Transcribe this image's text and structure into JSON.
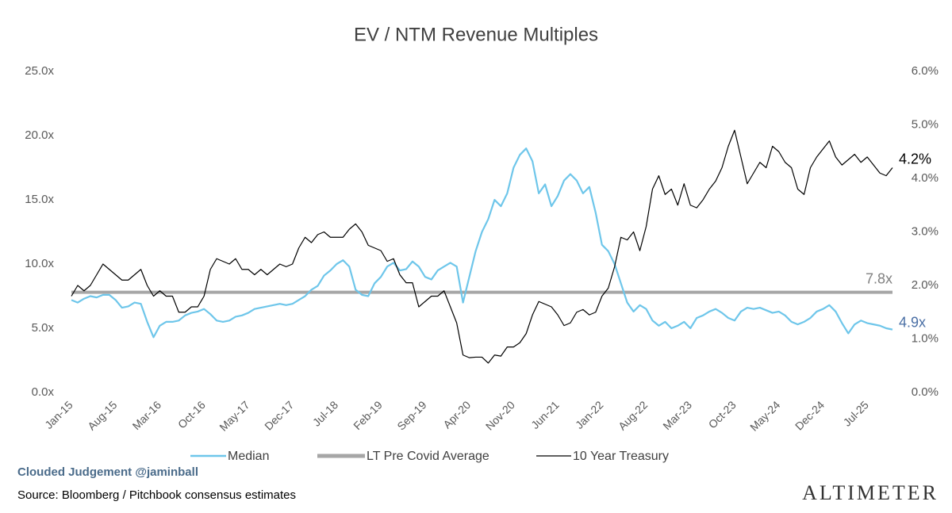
{
  "chart_data": {
    "type": "line",
    "title": "EV / NTM Revenue Multiples",
    "categories": [
      "Jan-15",
      null,
      null,
      null,
      null,
      null,
      null,
      "Aug-15",
      null,
      null,
      null,
      null,
      null,
      null,
      "Mar-16",
      null,
      null,
      null,
      null,
      null,
      null,
      "Oct-16",
      null,
      null,
      null,
      null,
      null,
      null,
      "May-17",
      null,
      null,
      null,
      null,
      null,
      null,
      "Dec-17",
      null,
      null,
      null,
      null,
      null,
      null,
      "Jul-18",
      null,
      null,
      null,
      null,
      null,
      null,
      "Feb-19",
      null,
      null,
      null,
      null,
      null,
      null,
      "Sep-19",
      null,
      null,
      null,
      null,
      null,
      null,
      "Apr-20",
      null,
      null,
      null,
      null,
      null,
      null,
      "Nov-20",
      null,
      null,
      null,
      null,
      null,
      null,
      "Jun-21",
      null,
      null,
      null,
      null,
      null,
      null,
      "Jan-22",
      null,
      null,
      null,
      null,
      null,
      null,
      "Aug-22",
      null,
      null,
      null,
      null,
      null,
      null,
      "Mar-23",
      null,
      null,
      null,
      null,
      null,
      null,
      "Oct-23",
      null,
      null,
      null,
      null,
      null,
      null,
      "May-24",
      null,
      null,
      null,
      null,
      null,
      null,
      "Dec-24",
      null,
      null,
      null,
      null,
      null,
      null,
      "Jul-25",
      null,
      null,
      null,
      null
    ],
    "series": [
      {
        "name": "Median",
        "color": "#6ec6ea",
        "end_label": "4.9x",
        "values": [
          7.2,
          7.0,
          7.3,
          7.5,
          7.4,
          7.6,
          7.6,
          7.2,
          6.6,
          6.7,
          7.0,
          6.9,
          5.5,
          4.3,
          5.2,
          5.5,
          5.5,
          5.6,
          6.0,
          6.2,
          6.3,
          6.5,
          6.1,
          5.6,
          5.5,
          5.6,
          5.9,
          6.0,
          6.2,
          6.5,
          6.6,
          6.7,
          6.8,
          6.9,
          6.8,
          6.9,
          7.2,
          7.5,
          8.0,
          8.3,
          9.1,
          9.5,
          10.0,
          10.3,
          9.8,
          8.0,
          7.6,
          7.5,
          8.5,
          9.0,
          9.8,
          10.1,
          9.5,
          9.6,
          10.2,
          9.8,
          9.0,
          8.8,
          9.5,
          9.8,
          10.1,
          9.8,
          7.0,
          9.0,
          11.0,
          12.5,
          13.5,
          15.0,
          14.5,
          15.5,
          17.5,
          18.5,
          19.0,
          18.0,
          15.5,
          16.2,
          14.5,
          15.3,
          16.5,
          17.0,
          16.5,
          15.5,
          16.0,
          14.0,
          11.5,
          11.0,
          10.0,
          8.5,
          7.0,
          6.3,
          6.8,
          6.5,
          5.6,
          5.2,
          5.5,
          5.0,
          5.2,
          5.5,
          5.0,
          5.8,
          6.0,
          6.3,
          6.5,
          6.2,
          5.8,
          5.6,
          6.3,
          6.6,
          6.5,
          6.6,
          6.4,
          6.2,
          6.3,
          6.0,
          5.5,
          5.3,
          5.5,
          5.8,
          6.3,
          6.5,
          6.8,
          6.3,
          5.4,
          4.6,
          5.3,
          5.6,
          5.4,
          5.3,
          5.2,
          5.0,
          4.9
        ]
      },
      {
        "name": "10 Year Treasury",
        "color": "#000000",
        "axis": "y2",
        "end_label": "4.2%",
        "values": [
          1.8,
          2.0,
          1.9,
          2.0,
          2.2,
          2.4,
          2.3,
          2.2,
          2.1,
          2.1,
          2.2,
          2.3,
          2.0,
          1.8,
          1.9,
          1.8,
          1.8,
          1.5,
          1.5,
          1.6,
          1.6,
          1.8,
          2.3,
          2.5,
          2.45,
          2.4,
          2.5,
          2.3,
          2.3,
          2.2,
          2.3,
          2.2,
          2.3,
          2.4,
          2.35,
          2.4,
          2.7,
          2.9,
          2.8,
          2.95,
          3.0,
          2.9,
          2.9,
          2.9,
          3.05,
          3.15,
          3.0,
          2.75,
          2.7,
          2.65,
          2.45,
          2.5,
          2.2,
          2.05,
          2.05,
          1.6,
          1.7,
          1.8,
          1.8,
          1.9,
          1.6,
          1.3,
          0.7,
          0.65,
          0.66,
          0.66,
          0.55,
          0.7,
          0.68,
          0.85,
          0.85,
          0.93,
          1.1,
          1.45,
          1.7,
          1.65,
          1.6,
          1.45,
          1.25,
          1.3,
          1.5,
          1.55,
          1.45,
          1.5,
          1.8,
          1.95,
          2.35,
          2.9,
          2.85,
          3.0,
          2.65,
          3.1,
          3.8,
          4.05,
          3.7,
          3.8,
          3.5,
          3.9,
          3.5,
          3.45,
          3.6,
          3.8,
          3.95,
          4.2,
          4.6,
          4.9,
          4.4,
          3.9,
          4.1,
          4.3,
          4.2,
          4.6,
          4.5,
          4.3,
          4.2,
          3.8,
          3.7,
          4.2,
          4.4,
          4.55,
          4.7,
          4.4,
          4.25,
          4.35,
          4.45,
          4.3,
          4.4,
          4.25,
          4.1,
          4.05,
          4.2
        ]
      }
    ],
    "reference": {
      "name": "LT Pre Covid Average",
      "value": 7.8,
      "label": "7.8x",
      "color": "#a6a6a6"
    },
    "ylim": [
      0,
      25
    ],
    "yticks": [
      {
        "value": 0,
        "label": "0.0x"
      },
      {
        "value": 5,
        "label": "5.0x"
      },
      {
        "value": 10,
        "label": "10.0x"
      },
      {
        "value": 15,
        "label": "15.0x"
      },
      {
        "value": 20,
        "label": "20.0x"
      },
      {
        "value": 25,
        "label": "25.0x"
      }
    ],
    "y2lim": [
      0,
      6
    ],
    "y2ticks": [
      {
        "value": 0,
        "label": "0.0%"
      },
      {
        "value": 1,
        "label": "1.0%"
      },
      {
        "value": 2,
        "label": "2.0%"
      },
      {
        "value": 3,
        "label": "3.0%"
      },
      {
        "value": 4,
        "label": "4.0%"
      },
      {
        "value": 5,
        "label": "5.0%"
      },
      {
        "value": 6,
        "label": "6.0%"
      }
    ],
    "grid": false,
    "watermark": "Clouded Judgement @jaminball",
    "source": "Source: Bloomberg / Pitchbook consensus estimates",
    "logo": "ALTIMETER"
  }
}
